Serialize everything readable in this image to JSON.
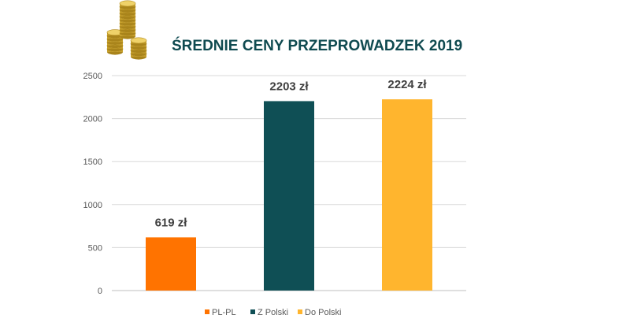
{
  "chart_data": {
    "type": "bar",
    "title": "ŚREDNIE CENY PRZEPROWADZEK 2019",
    "categories": [
      "PL-PL",
      "Z Polski",
      "Do Polski"
    ],
    "values": [
      619,
      2203,
      2224
    ],
    "data_labels": [
      "619 zł",
      "2203 zł",
      "2224 zł"
    ],
    "colors": [
      "#ff7300",
      "#0f4f55",
      "#ffb52e"
    ],
    "ylim": [
      0,
      2500
    ],
    "yticks": [
      "0",
      "500",
      "1000",
      "1500",
      "2000",
      "2500"
    ],
    "grid": true,
    "legend": {
      "position": "bottom",
      "entries": [
        "PL-PL",
        "Z Polski",
        "Do Polski"
      ]
    }
  },
  "decor": {
    "icon": "coin-stack-icon"
  }
}
